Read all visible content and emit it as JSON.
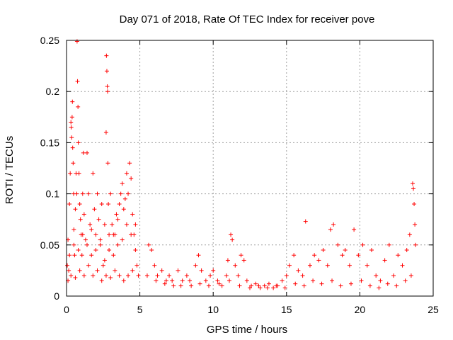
{
  "chart_data": {
    "type": "scatter",
    "title": "Day 071 of 2018, Rate Of TEC Index for receiver pove",
    "xlabel": "GPS time / hours",
    "ylabel": "ROTI / TECUs",
    "xlim": [
      0,
      25
    ],
    "ylim": [
      0,
      0.25
    ],
    "xticks": [
      0,
      5,
      10,
      15,
      20,
      25
    ],
    "xtick_labels": [
      "0",
      "5",
      "10",
      "15",
      "20",
      "25"
    ],
    "yticks": [
      0,
      0.05,
      0.1,
      0.15,
      0.2,
      0.25
    ],
    "ytick_labels": [
      "0",
      "0.05",
      "0.1",
      "0.15",
      "0.2",
      "0.25"
    ],
    "grid": true,
    "marker": "+",
    "series_color": "#ff0000",
    "series": [
      {
        "name": "ROTI",
        "points": [
          [
            0.05,
            0.03
          ],
          [
            0.1,
            0.055
          ],
          [
            0.15,
            0.025
          ],
          [
            0.2,
            0.09
          ],
          [
            0.25,
            0.12
          ],
          [
            0.3,
            0.17
          ],
          [
            0.32,
            0.165
          ],
          [
            0.35,
            0.155
          ],
          [
            0.38,
            0.175
          ],
          [
            0.4,
            0.19
          ],
          [
            0.42,
            0.145
          ],
          [
            0.45,
            0.13
          ],
          [
            0.48,
            0.1
          ],
          [
            0.5,
            0.065
          ],
          [
            0.55,
            0.04
          ],
          [
            0.6,
            0.085
          ],
          [
            0.65,
            0.12
          ],
          [
            0.7,
            0.1
          ],
          [
            0.72,
            0.249
          ],
          [
            0.75,
            0.21
          ],
          [
            0.78,
            0.185
          ],
          [
            0.8,
            0.15
          ],
          [
            0.85,
            0.12
          ],
          [
            0.9,
            0.09
          ],
          [
            0.95,
            0.075
          ],
          [
            1.0,
            0.06
          ],
          [
            1.05,
            0.04
          ],
          [
            1.1,
            0.1
          ],
          [
            1.15,
            0.14
          ],
          [
            1.2,
            0.08
          ],
          [
            1.3,
            0.055
          ],
          [
            1.4,
            0.14
          ],
          [
            1.5,
            0.1
          ],
          [
            1.6,
            0.07
          ],
          [
            1.7,
            0.04
          ],
          [
            1.8,
            0.12
          ],
          [
            1.9,
            0.085
          ],
          [
            2.0,
            0.06
          ],
          [
            2.1,
            0.1
          ],
          [
            2.2,
            0.075
          ],
          [
            2.3,
            0.05
          ],
          [
            2.4,
            0.09
          ],
          [
            2.5,
            0.03
          ],
          [
            2.6,
            0.035
          ],
          [
            2.7,
            0.16
          ],
          [
            2.72,
            0.235
          ],
          [
            2.75,
            0.22
          ],
          [
            2.78,
            0.205
          ],
          [
            2.8,
            0.2
          ],
          [
            2.82,
            0.13
          ],
          [
            2.85,
            0.09
          ],
          [
            2.9,
            0.06
          ],
          [
            3.0,
            0.1
          ],
          [
            3.1,
            0.07
          ],
          [
            3.2,
            0.04
          ],
          [
            3.3,
            0.06
          ],
          [
            3.4,
            0.08
          ],
          [
            3.5,
            0.05
          ],
          [
            3.6,
            0.09
          ],
          [
            3.7,
            0.1
          ],
          [
            3.8,
            0.11
          ],
          [
            3.9,
            0.085
          ],
          [
            4.0,
            0.095
          ],
          [
            4.1,
            0.12
          ],
          [
            4.2,
            0.1
          ],
          [
            4.3,
            0.13
          ],
          [
            4.4,
            0.115
          ],
          [
            4.5,
            0.08
          ],
          [
            4.6,
            0.06
          ],
          [
            4.7,
            0.045
          ],
          [
            4.8,
            0.03
          ],
          [
            4.9,
            0.02
          ],
          [
            0.1,
            0.015
          ],
          [
            0.3,
            0.02
          ],
          [
            0.6,
            0.018
          ],
          [
            0.9,
            0.025
          ],
          [
            1.2,
            0.02
          ],
          [
            1.5,
            0.03
          ],
          [
            1.8,
            0.02
          ],
          [
            2.1,
            0.025
          ],
          [
            2.4,
            0.015
          ],
          [
            2.7,
            0.02
          ],
          [
            3.0,
            0.018
          ],
          [
            3.3,
            0.025
          ],
          [
            3.6,
            0.02
          ],
          [
            3.9,
            0.015
          ],
          [
            4.2,
            0.02
          ],
          [
            4.5,
            0.025
          ],
          [
            0.2,
            0.04
          ],
          [
            0.5,
            0.05
          ],
          [
            0.8,
            0.045
          ],
          [
            1.1,
            0.06
          ],
          [
            1.4,
            0.05
          ],
          [
            1.7,
            0.065
          ],
          [
            2.0,
            0.045
          ],
          [
            2.3,
            0.055
          ],
          [
            2.6,
            0.07
          ],
          [
            2.9,
            0.045
          ],
          [
            3.2,
            0.06
          ],
          [
            3.5,
            0.075
          ],
          [
            3.8,
            0.055
          ],
          [
            4.1,
            0.07
          ],
          [
            4.4,
            0.06
          ],
          [
            4.7,
            0.07
          ],
          [
            5.6,
            0.05
          ],
          [
            5.8,
            0.045
          ],
          [
            6.0,
            0.03
          ],
          [
            6.2,
            0.02
          ],
          [
            6.5,
            0.025
          ],
          [
            6.8,
            0.015
          ],
          [
            7.0,
            0.02
          ],
          [
            7.3,
            0.01
          ],
          [
            7.6,
            0.025
          ],
          [
            7.9,
            0.015
          ],
          [
            8.2,
            0.02
          ],
          [
            8.5,
            0.01
          ],
          [
            8.8,
            0.03
          ],
          [
            9.0,
            0.04
          ],
          [
            9.2,
            0.025
          ],
          [
            9.5,
            0.015
          ],
          [
            9.8,
            0.02
          ],
          [
            10.0,
            0.025
          ],
          [
            10.3,
            0.015
          ],
          [
            10.6,
            0.01
          ],
          [
            10.9,
            0.02
          ],
          [
            11.0,
            0.035
          ],
          [
            11.2,
            0.06
          ],
          [
            11.3,
            0.055
          ],
          [
            11.5,
            0.03
          ],
          [
            11.7,
            0.02
          ],
          [
            11.9,
            0.04
          ],
          [
            12.1,
            0.035
          ],
          [
            12.3,
            0.015
          ],
          [
            12.6,
            0.01
          ],
          [
            12.9,
            0.012
          ],
          [
            13.2,
            0.008
          ],
          [
            13.5,
            0.01
          ],
          [
            13.8,
            0.012
          ],
          [
            14.1,
            0.008
          ],
          [
            14.4,
            0.01
          ],
          [
            14.7,
            0.015
          ],
          [
            15.0,
            0.02
          ],
          [
            15.2,
            0.03
          ],
          [
            15.5,
            0.04
          ],
          [
            15.8,
            0.025
          ],
          [
            16.1,
            0.02
          ],
          [
            16.3,
            0.073
          ],
          [
            16.6,
            0.03
          ],
          [
            16.9,
            0.04
          ],
          [
            17.2,
            0.035
          ],
          [
            17.5,
            0.045
          ],
          [
            17.8,
            0.03
          ],
          [
            18.0,
            0.065
          ],
          [
            18.2,
            0.07
          ],
          [
            18.5,
            0.05
          ],
          [
            18.8,
            0.04
          ],
          [
            19.0,
            0.045
          ],
          [
            19.3,
            0.03
          ],
          [
            19.6,
            0.065
          ],
          [
            19.9,
            0.04
          ],
          [
            20.2,
            0.05
          ],
          [
            20.5,
            0.03
          ],
          [
            20.8,
            0.045
          ],
          [
            21.1,
            0.02
          ],
          [
            21.4,
            0.015
          ],
          [
            21.7,
            0.035
          ],
          [
            22.0,
            0.05
          ],
          [
            22.3,
            0.02
          ],
          [
            22.6,
            0.04
          ],
          [
            22.9,
            0.03
          ],
          [
            23.2,
            0.045
          ],
          [
            23.4,
            0.06
          ],
          [
            23.6,
            0.11
          ],
          [
            23.65,
            0.105
          ],
          [
            23.7,
            0.09
          ],
          [
            23.75,
            0.07
          ],
          [
            23.8,
            0.05
          ],
          [
            5.5,
            0.02
          ],
          [
            6.1,
            0.015
          ],
          [
            6.7,
            0.012
          ],
          [
            7.2,
            0.015
          ],
          [
            7.8,
            0.01
          ],
          [
            8.4,
            0.015
          ],
          [
            9.1,
            0.012
          ],
          [
            9.7,
            0.01
          ],
          [
            10.4,
            0.012
          ],
          [
            11.1,
            0.015
          ],
          [
            11.8,
            0.01
          ],
          [
            12.5,
            0.008
          ],
          [
            13.1,
            0.01
          ],
          [
            13.7,
            0.008
          ],
          [
            14.3,
            0.01
          ],
          [
            14.9,
            0.008
          ],
          [
            15.6,
            0.012
          ],
          [
            16.2,
            0.01
          ],
          [
            16.8,
            0.015
          ],
          [
            17.4,
            0.012
          ],
          [
            18.1,
            0.015
          ],
          [
            18.7,
            0.01
          ],
          [
            19.4,
            0.012
          ],
          [
            20.1,
            0.015
          ],
          [
            20.7,
            0.01
          ],
          [
            21.3,
            0.008
          ],
          [
            21.9,
            0.012
          ],
          [
            22.5,
            0.01
          ],
          [
            23.1,
            0.015
          ],
          [
            23.5,
            0.02
          ]
        ]
      }
    ]
  }
}
